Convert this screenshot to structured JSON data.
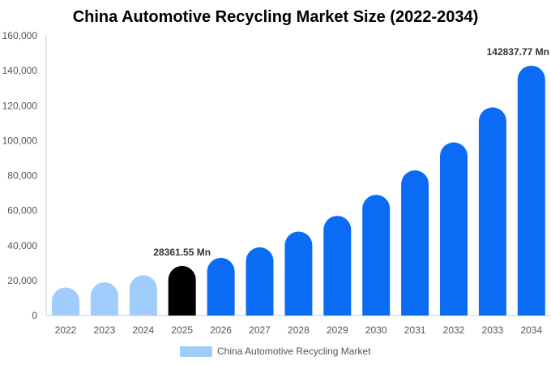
{
  "chart_data": {
    "type": "bar",
    "title": "China Automotive Recycling Market Size (2022-2034)",
    "categories": [
      "2022",
      "2023",
      "2024",
      "2025",
      "2026",
      "2027",
      "2028",
      "2029",
      "2030",
      "2031",
      "2032",
      "2033",
      "2034"
    ],
    "series": [
      {
        "name": "China Automotive Recycling Market",
        "values": [
          16000,
          19000,
          23000,
          28361.55,
          33000,
          39000,
          48000,
          57000,
          69000,
          83000,
          99000,
          119000,
          142837.77
        ]
      }
    ],
    "data_labels": [
      {
        "category": "2025",
        "text": "28361.55 Mn"
      },
      {
        "category": "2034",
        "text": "142837.77 Mn"
      }
    ],
    "y_ticks": [
      "0",
      "20,000",
      "40,000",
      "60,000",
      "80,000",
      "100,000",
      "120,000",
      "140,000",
      "160,000"
    ],
    "ylim": [
      0,
      160000
    ],
    "xlabel": "",
    "ylabel": "",
    "grid": false,
    "legend_position": "bottom",
    "colors": {
      "historical": "#a0cdfb",
      "current": "#000000",
      "forecast": "#0a6cf5",
      "legend_swatch": "#a0cdfb",
      "axis": "#cccccc"
    },
    "period_by_category": [
      "historical",
      "historical",
      "historical",
      "current",
      "forecast",
      "forecast",
      "forecast",
      "forecast",
      "forecast",
      "forecast",
      "forecast",
      "forecast",
      "forecast"
    ]
  }
}
